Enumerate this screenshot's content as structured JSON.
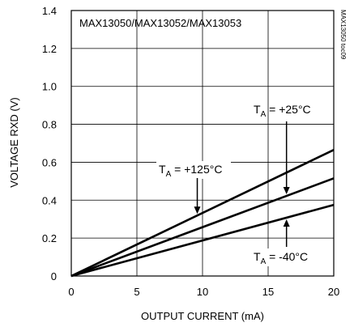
{
  "chart_data": {
    "type": "line",
    "title": "MAX13050/MAX13052/MAX13053",
    "figure_id": "MAX13050 toc09",
    "xlabel": "OUTPUT CURRENT (mA)",
    "ylabel": "VOLTAGE RXD (V)",
    "xlim": [
      0,
      20
    ],
    "ylim": [
      0,
      1.4
    ],
    "x_ticks": [
      0,
      5,
      10,
      15,
      20
    ],
    "y_ticks": [
      0,
      0.2,
      0.4,
      0.6,
      0.8,
      1.0,
      1.2,
      1.4
    ],
    "y_tick_labels": [
      "0",
      "0.2",
      "0.4",
      "0.6",
      "0.8",
      "1.0",
      "1.2",
      "1.4"
    ],
    "grid": true,
    "series": [
      {
        "name": "TA = +125°C",
        "label_main": "T",
        "label_sub": "A",
        "label_rest": " = +125°C",
        "x": [
          0,
          20
        ],
        "y": [
          0,
          0.665
        ],
        "color": "#000000"
      },
      {
        "name": "TA = +25°C",
        "label_main": "T",
        "label_sub": "A",
        "label_rest": " = +25°C",
        "x": [
          0,
          20
        ],
        "y": [
          0,
          0.515
        ],
        "color": "#000000"
      },
      {
        "name": "TA = -40°C",
        "label_main": "T",
        "label_sub": "A",
        "label_rest": " = -40°C",
        "x": [
          0,
          20
        ],
        "y": [
          0,
          0.375
        ],
        "color": "#000000"
      }
    ]
  }
}
